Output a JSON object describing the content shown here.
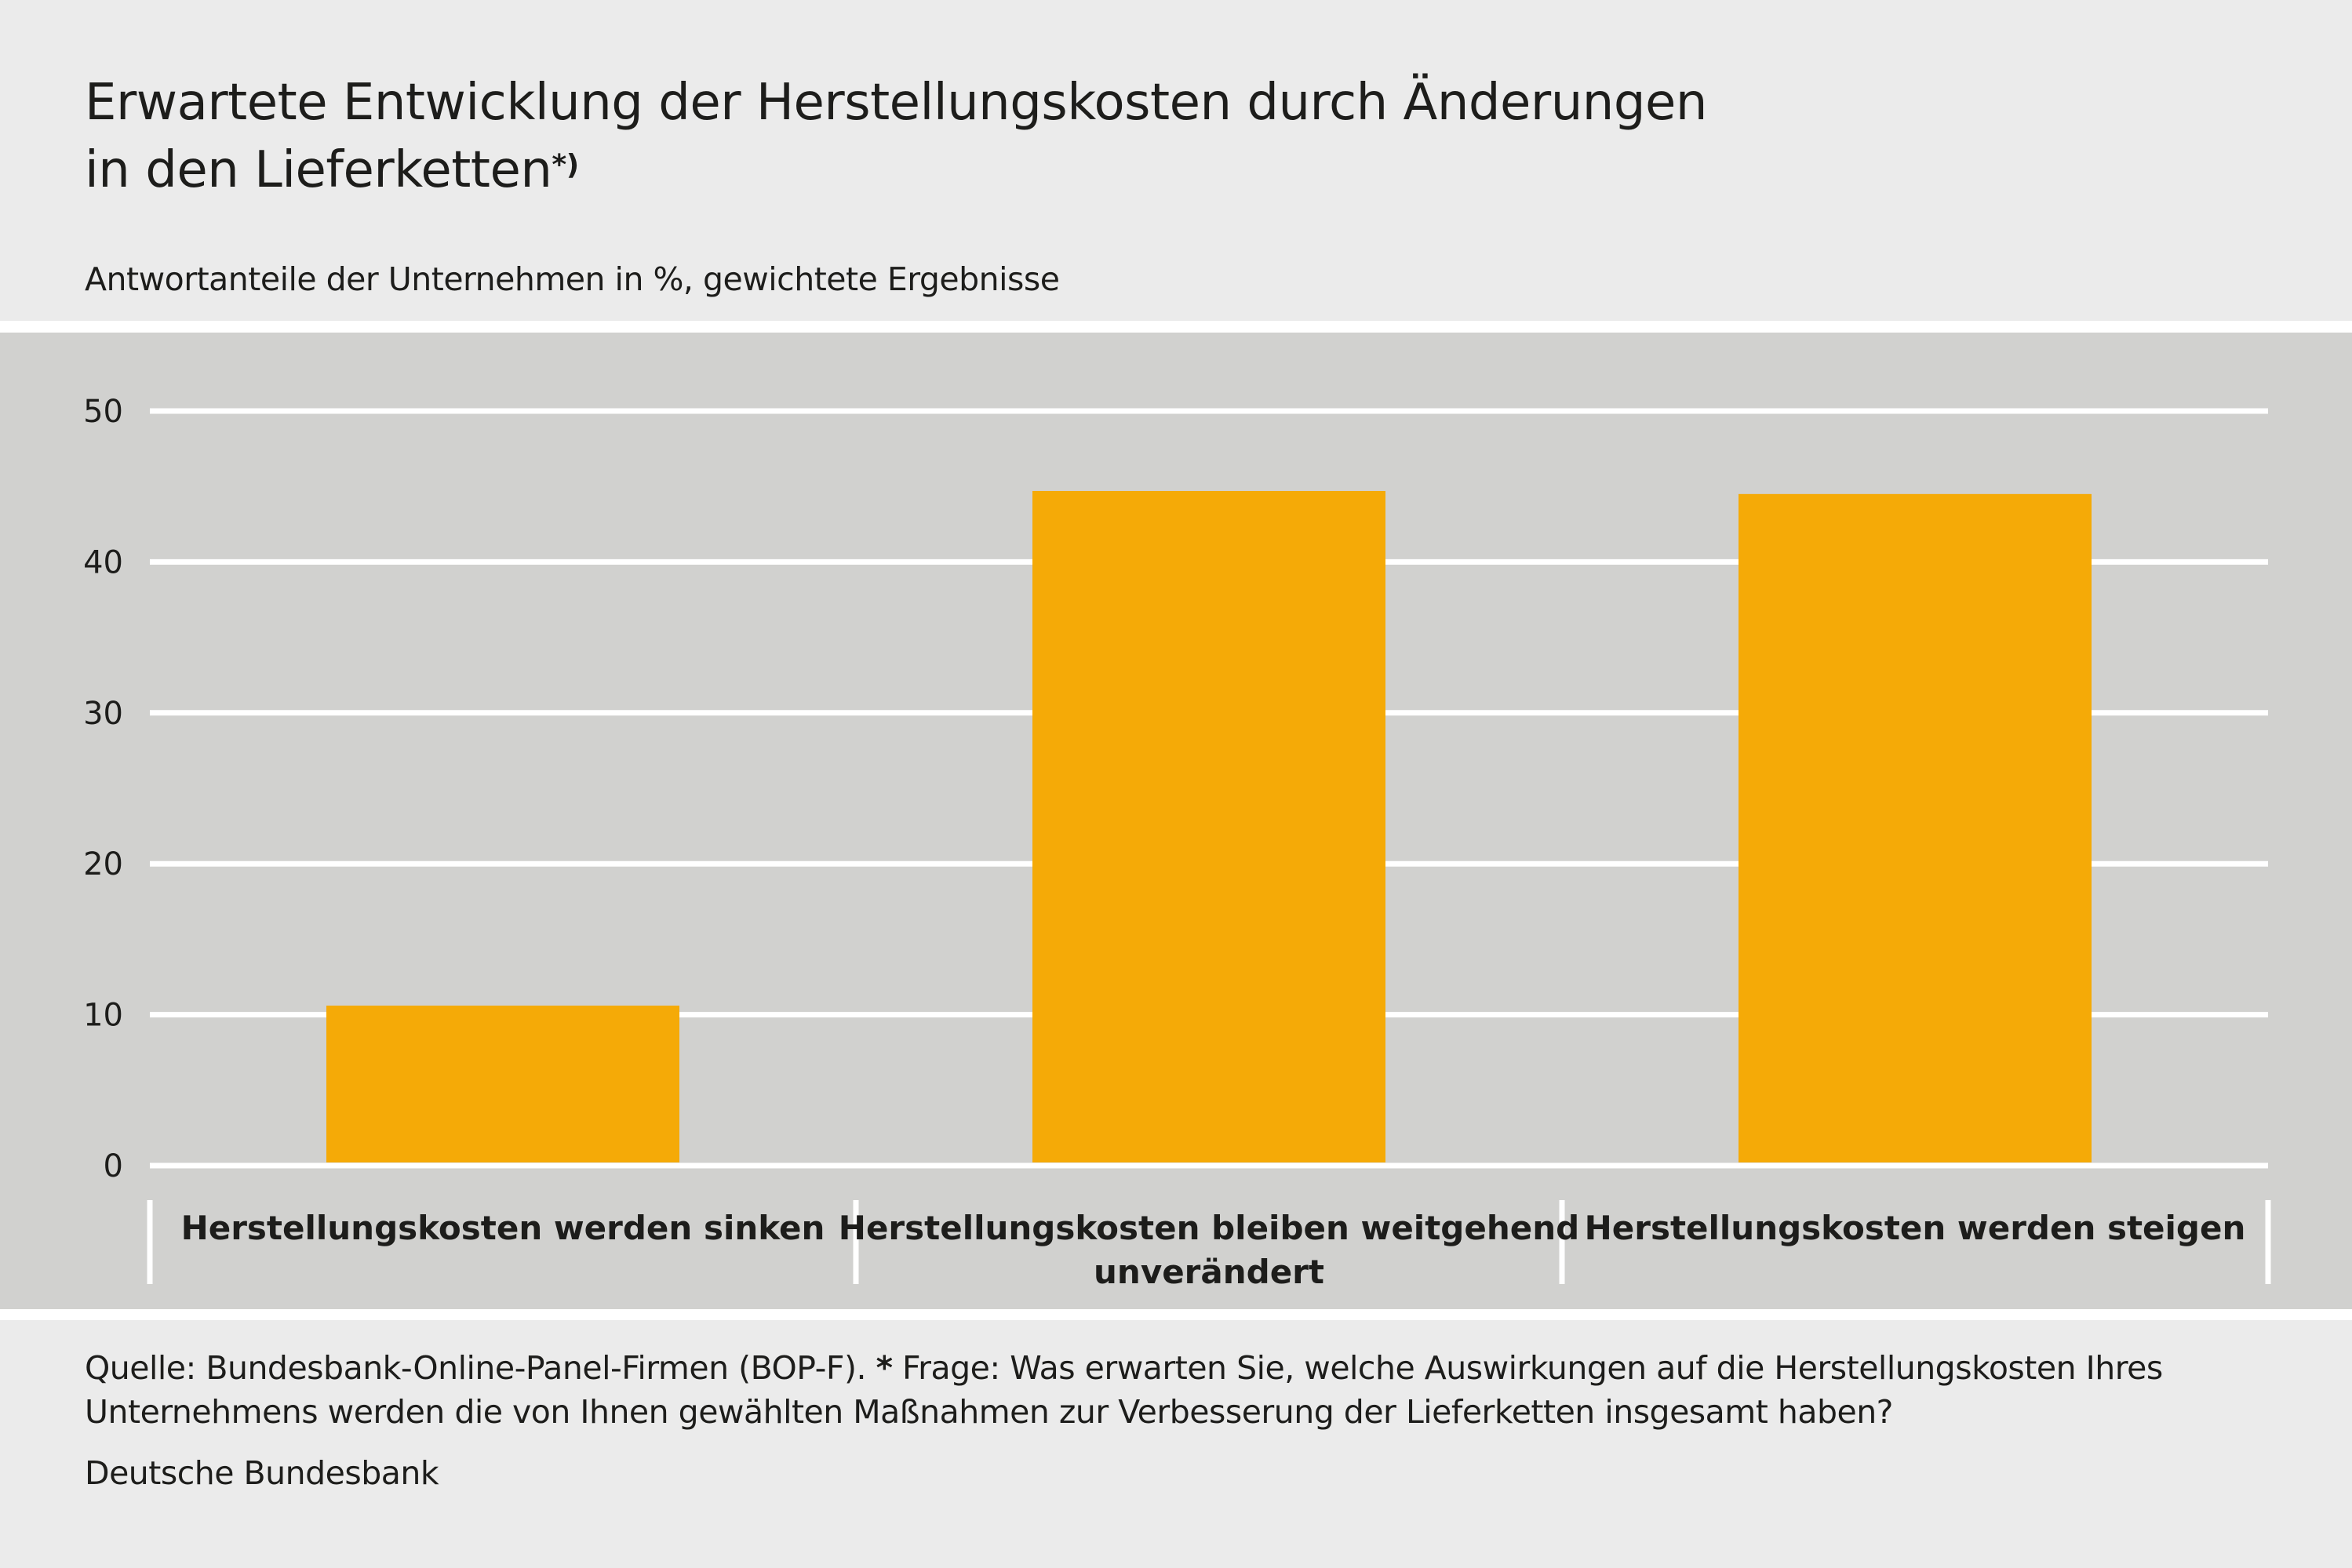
{
  "chart_data": {
    "type": "bar",
    "title": "Erwartete Entwicklung der Herstellungskosten durch Änderungen in den Lieferketten",
    "title_line1": "Erwartete Entwicklung der Herstellungskosten durch Änderungen",
    "title_line2": "in den Lieferketten",
    "title_footnote_mark": "*)",
    "subtitle": "Antwortanteile der Unternehmen in %, gewichtete Ergebnisse",
    "categories": [
      "Herstellungskosten werden sinken",
      "Herstellungskosten bleiben weitgehend unverändert",
      "Herstellungskosten werden steigen"
    ],
    "values": [
      10.6,
      44.7,
      44.5
    ],
    "ylim": [
      0,
      50
    ],
    "yticks": [
      "0",
      "10",
      "20",
      "30",
      "40",
      "50"
    ],
    "xlabel": "",
    "ylabel": "",
    "grid": true,
    "colors": {
      "bar": "#f5aa07",
      "plot_bg": "#d1d1cf",
      "page_bg": "#ebebeb",
      "grid": "#ffffff"
    }
  },
  "footer": {
    "source_line1_pre": "Quelle: Bundesbank-Online-Panel-Firmen (BOP-F). ",
    "source_star": "*",
    "source_line1_post": " Frage: Was erwarten Sie, welche Auswirkungen auf die Herstellungskosten Ihres",
    "source_line2": "Unternehmens werden die von Ihnen gewählten Maßnahmen zur Verbesserung der Lieferketten insgesamt haben?",
    "publisher": "Deutsche Bundesbank"
  }
}
